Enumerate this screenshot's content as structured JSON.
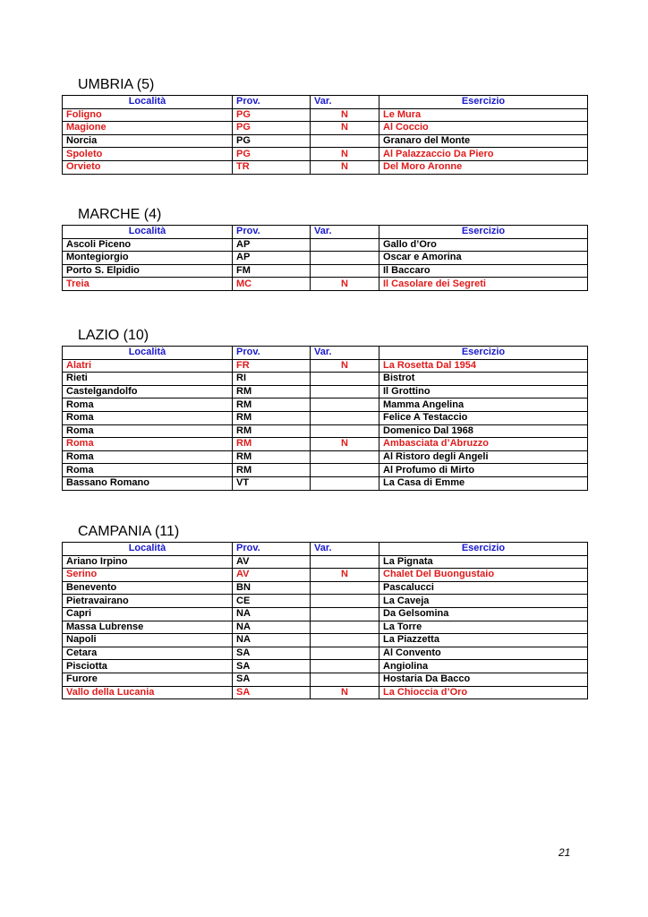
{
  "headers": [
    "Località",
    "Prov.",
    "Var.",
    "Esercizio"
  ],
  "colors": {
    "header": "#1a1acc",
    "new_entry": "#e01b1b",
    "normal": "#000000"
  },
  "sections": [
    {
      "title": "UMBRIA (5)",
      "rows": [
        {
          "localita": "Foligno",
          "prov": "PG",
          "var": "N",
          "esercizio": "Le Mura"
        },
        {
          "localita": "Magione",
          "prov": "PG",
          "var": "N",
          "esercizio": "Al Coccio"
        },
        {
          "localita": "Norcia",
          "prov": "PG",
          "var": "",
          "esercizio": "Granaro del Monte"
        },
        {
          "localita": "Spoleto",
          "prov": "PG",
          "var": "N",
          "esercizio": "Al Palazzaccio Da Piero"
        },
        {
          "localita": "Orvieto",
          "prov": "TR",
          "var": "N",
          "esercizio": "Del Moro Aronne"
        }
      ]
    },
    {
      "title": "MARCHE (4)",
      "rows": [
        {
          "localita": "Ascoli Piceno",
          "prov": "AP",
          "var": "",
          "esercizio": "Gallo d’Oro"
        },
        {
          "localita": "Montegiorgio",
          "prov": "AP",
          "var": "",
          "esercizio": "Oscar e Amorina"
        },
        {
          "localita": "Porto S. Elpidio",
          "prov": "FM",
          "var": "",
          "esercizio": "Il Baccaro"
        },
        {
          "localita": "Treia",
          "prov": "MC",
          "var": "N",
          "esercizio": "Il Casolare dei Segreti"
        }
      ]
    },
    {
      "title": "LAZIO (10)",
      "rows": [
        {
          "localita": "Alatri",
          "prov": "FR",
          "var": "N",
          "esercizio": "La Rosetta Dal 1954"
        },
        {
          "localita": "Rieti",
          "prov": "RI",
          "var": "",
          "esercizio": "Bistrot"
        },
        {
          "localita": "Castelgandolfo",
          "prov": "RM",
          "var": "",
          "esercizio": "Il Grottino"
        },
        {
          "localita": "Roma",
          "prov": "RM",
          "var": "",
          "esercizio": "Mamma Angelina"
        },
        {
          "localita": "Roma",
          "prov": "RM",
          "var": "",
          "esercizio": "Felice A Testaccio"
        },
        {
          "localita": "Roma",
          "prov": "RM",
          "var": "",
          "esercizio": "Domenico Dal 1968"
        },
        {
          "localita": "Roma",
          "prov": "RM",
          "var": "N",
          "esercizio": "Ambasciata d’Abruzzo"
        },
        {
          "localita": "Roma",
          "prov": "RM",
          "var": "",
          "esercizio": "Al Ristoro degli Angeli"
        },
        {
          "localita": "Roma",
          "prov": "RM",
          "var": "",
          "esercizio": "Al Profumo di Mirto"
        },
        {
          "localita": "Bassano Romano",
          "prov": "VT",
          "var": "",
          "esercizio": "La Casa di Emme"
        }
      ]
    },
    {
      "title": "CAMPANIA (11)",
      "rows": [
        {
          "localita": "Ariano Irpino",
          "prov": "AV",
          "var": "",
          "esercizio": "La Pignata"
        },
        {
          "localita": "Serino",
          "prov": "AV",
          "var": "N",
          "esercizio": "Chalet Del Buongustaio"
        },
        {
          "localita": "Benevento",
          "prov": "BN",
          "var": "",
          "esercizio": "Pascalucci"
        },
        {
          "localita": "Pietravairano",
          "prov": "CE",
          "var": "",
          "esercizio": "La Caveja"
        },
        {
          "localita": "Capri",
          "prov": "NA",
          "var": "",
          "esercizio": "Da Gelsomina"
        },
        {
          "localita": "Massa Lubrense",
          "prov": "NA",
          "var": "",
          "esercizio": "La Torre"
        },
        {
          "localita": "Napoli",
          "prov": "NA",
          "var": "",
          "esercizio": "La Piazzetta"
        },
        {
          "localita": "Cetara",
          "prov": "SA",
          "var": "",
          "esercizio": "Al Convento"
        },
        {
          "localita": "Pisciotta",
          "prov": "SA",
          "var": "",
          "esercizio": "Angiolina"
        },
        {
          "localita": "Furore",
          "prov": "SA",
          "var": "",
          "esercizio": "Hostaria Da Bacco"
        },
        {
          "localita": "Vallo della Lucania",
          "prov": "SA",
          "var": "N",
          "esercizio": "La Chioccia d’Oro"
        }
      ]
    }
  ],
  "page_number": "21"
}
